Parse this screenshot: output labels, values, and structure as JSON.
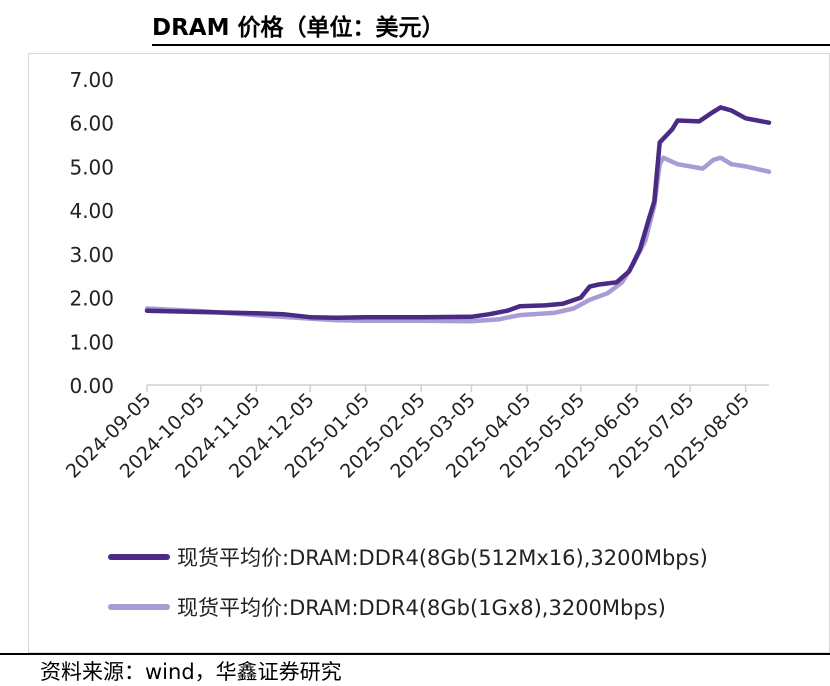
{
  "title": "DRAM 价格（单位：美元）",
  "source": "资料来源：wind，华鑫证券研究",
  "colors": {
    "series1": "#4a2a85",
    "series2": "#a99bd6",
    "axis": "#d0d0d0",
    "text": "#222222"
  },
  "chart_data": {
    "type": "line",
    "title": "DRAM 价格（单位：美元）",
    "ylim": [
      0,
      7
    ],
    "yticks": [
      "0.00",
      "1.00",
      "2.00",
      "3.00",
      "4.00",
      "5.00",
      "6.00",
      "7.00"
    ],
    "xlim": [
      "2024-09-05",
      "2025-08-18"
    ],
    "xticks": [
      "2024-09-05",
      "2024-10-05",
      "2024-11-05",
      "2024-12-05",
      "2025-01-05",
      "2025-02-05",
      "2025-03-05",
      "2025-04-05",
      "2025-05-05",
      "2025-06-05",
      "2025-07-05",
      "2025-08-05"
    ],
    "grid": false,
    "legend": "bottom",
    "series": [
      {
        "name": "现货平均价:DRAM:DDR4(8Gb(512Mx16),3200Mbps)",
        "points": [
          [
            "2024-09-05",
            1.7
          ],
          [
            "2024-10-05",
            1.67
          ],
          [
            "2024-11-05",
            1.64
          ],
          [
            "2024-11-20",
            1.62
          ],
          [
            "2024-12-05",
            1.55
          ],
          [
            "2024-12-20",
            1.54
          ],
          [
            "2025-01-05",
            1.55
          ],
          [
            "2025-02-05",
            1.55
          ],
          [
            "2025-03-05",
            1.56
          ],
          [
            "2025-03-15",
            1.62
          ],
          [
            "2025-03-25",
            1.7
          ],
          [
            "2025-04-01",
            1.8
          ],
          [
            "2025-04-15",
            1.82
          ],
          [
            "2025-04-25",
            1.86
          ],
          [
            "2025-05-05",
            2.0
          ],
          [
            "2025-05-10",
            2.25
          ],
          [
            "2025-05-15",
            2.3
          ],
          [
            "2025-05-25",
            2.35
          ],
          [
            "2025-06-01",
            2.6
          ],
          [
            "2025-06-07",
            3.1
          ],
          [
            "2025-06-12",
            3.8
          ],
          [
            "2025-06-15",
            4.2
          ],
          [
            "2025-06-18",
            5.55
          ],
          [
            "2025-06-25",
            5.85
          ],
          [
            "2025-06-28",
            6.05
          ],
          [
            "2025-07-10",
            6.03
          ],
          [
            "2025-07-18",
            6.25
          ],
          [
            "2025-07-22",
            6.35
          ],
          [
            "2025-07-28",
            6.28
          ],
          [
            "2025-08-05",
            6.1
          ],
          [
            "2025-08-18",
            6.0
          ]
        ]
      },
      {
        "name": "现货平均价:DRAM:DDR4(8Gb(1Gx8),3200Mbps)",
        "points": [
          [
            "2024-09-05",
            1.75
          ],
          [
            "2024-10-05",
            1.69
          ],
          [
            "2024-11-05",
            1.6
          ],
          [
            "2024-12-05",
            1.52
          ],
          [
            "2024-12-20",
            1.48
          ],
          [
            "2025-01-05",
            1.47
          ],
          [
            "2025-02-05",
            1.47
          ],
          [
            "2025-03-05",
            1.46
          ],
          [
            "2025-03-20",
            1.5
          ],
          [
            "2025-04-01",
            1.6
          ],
          [
            "2025-04-20",
            1.65
          ],
          [
            "2025-05-01",
            1.75
          ],
          [
            "2025-05-10",
            1.95
          ],
          [
            "2025-05-20",
            2.1
          ],
          [
            "2025-05-28",
            2.35
          ],
          [
            "2025-06-03",
            2.75
          ],
          [
            "2025-06-10",
            3.3
          ],
          [
            "2025-06-15",
            4.1
          ],
          [
            "2025-06-18",
            5.05
          ],
          [
            "2025-06-20",
            5.2
          ],
          [
            "2025-06-28",
            5.05
          ],
          [
            "2025-07-05",
            5.0
          ],
          [
            "2025-07-12",
            4.95
          ],
          [
            "2025-07-18",
            5.15
          ],
          [
            "2025-07-22",
            5.2
          ],
          [
            "2025-07-28",
            5.05
          ],
          [
            "2025-08-05",
            5.0
          ],
          [
            "2025-08-18",
            4.88
          ]
        ]
      }
    ]
  }
}
